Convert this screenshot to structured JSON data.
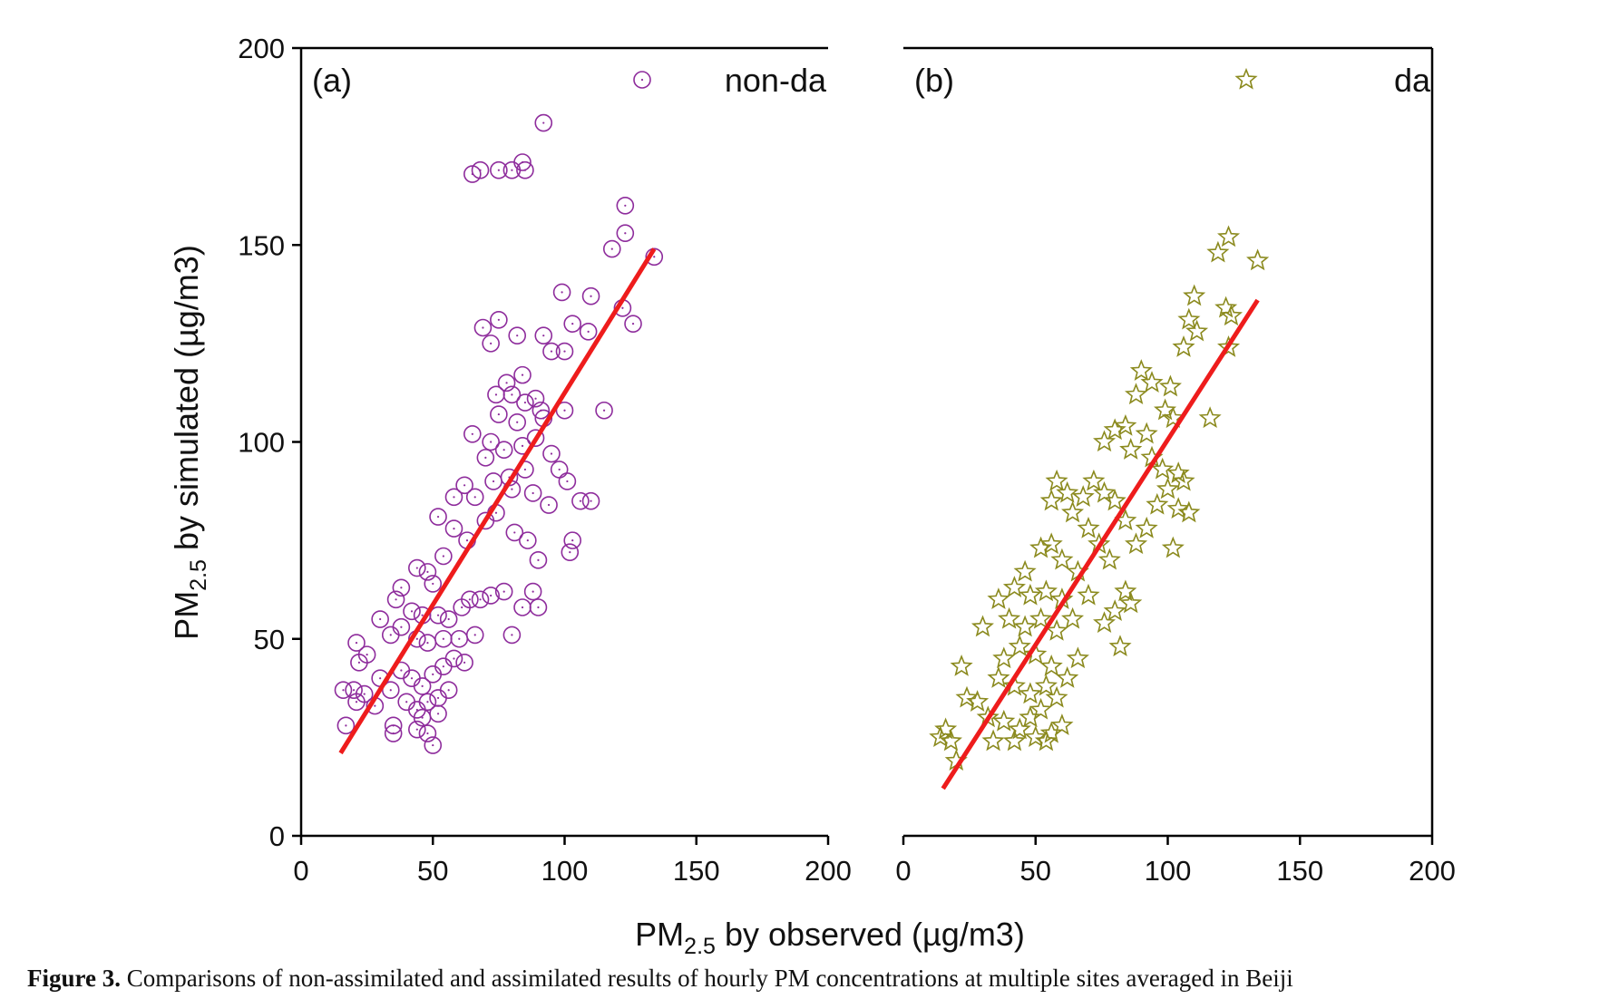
{
  "chart_data": [
    {
      "type": "scatter",
      "panel_label": "(a)",
      "xlim": [
        0,
        200
      ],
      "ylim": [
        0,
        200
      ],
      "xticks": [
        0,
        50,
        100,
        150,
        200
      ],
      "yticks": [
        0,
        50,
        100,
        150,
        200
      ],
      "legend": "upper right",
      "left_axis": true,
      "right_axis": false,
      "series": [
        {
          "name": "non-da",
          "color": "#8e2c9c",
          "marker": "circle",
          "x": [
            92,
            65,
            68,
            75,
            80,
            84,
            85,
            123,
            123,
            118,
            134,
            122,
            126,
            110,
            99,
            109,
            103,
            95,
            100,
            92,
            75,
            69,
            82,
            72,
            84,
            78,
            80,
            74,
            85,
            89,
            75,
            82,
            91,
            100,
            115,
            92,
            65,
            72,
            77,
            84,
            89,
            95,
            98,
            85,
            79,
            70,
            62,
            58,
            66,
            73,
            80,
            88,
            94,
            101,
            106,
            110,
            103,
            102,
            90,
            86,
            81,
            74,
            70,
            52,
            58,
            63,
            54,
            48,
            44,
            50,
            38,
            36,
            42,
            46,
            52,
            56,
            61,
            64,
            68,
            72,
            77,
            80,
            88,
            90,
            84,
            30,
            34,
            38,
            44,
            48,
            54,
            60,
            66,
            21,
            22,
            25,
            30,
            34,
            38,
            42,
            46,
            50,
            54,
            58,
            62,
            16,
            20,
            24,
            28,
            21,
            40,
            44,
            48,
            52,
            56,
            17,
            35,
            35,
            44,
            48,
            50,
            46,
            52
          ],
          "y": [
            181,
            168,
            169,
            169,
            169,
            171,
            169,
            160,
            153,
            149,
            147,
            134,
            130,
            137,
            138,
            128,
            130,
            123,
            123,
            127,
            131,
            129,
            127,
            125,
            117,
            115,
            112,
            112,
            110,
            111,
            107,
            105,
            108,
            108,
            108,
            106,
            102,
            100,
            98,
            99,
            101,
            97,
            93,
            93,
            91,
            96,
            89,
            86,
            86,
            90,
            88,
            87,
            84,
            90,
            85,
            85,
            75,
            72,
            70,
            75,
            77,
            82,
            80,
            81,
            78,
            75,
            71,
            67,
            68,
            64,
            63,
            60,
            57,
            56,
            56,
            55,
            58,
            60,
            60,
            61,
            62,
            51,
            62,
            58,
            58,
            55,
            51,
            53,
            50,
            49,
            50,
            50,
            51,
            49,
            44,
            46,
            40,
            37,
            42,
            40,
            38,
            41,
            43,
            45,
            44,
            37,
            37,
            36,
            33,
            34,
            34,
            32,
            34,
            35,
            37,
            28,
            28,
            26,
            27,
            26,
            23,
            30,
            31
          ]
        }
      ],
      "fit_line": {
        "color": "#ee1c1c",
        "x": [
          15,
          134
        ],
        "y": [
          21,
          149
        ]
      }
    },
    {
      "type": "scatter",
      "panel_label": "(b)",
      "xlim": [
        0,
        200
      ],
      "ylim": [
        0,
        200
      ],
      "xticks": [
        0,
        50,
        100,
        150,
        200
      ],
      "legend": "upper right",
      "left_axis": false,
      "right_axis": true,
      "series": [
        {
          "name": "da",
          "color": "#8b8a1e",
          "marker": "star",
          "x": [
            123,
            119,
            134,
            110,
            122,
            124,
            111,
            108,
            106,
            123,
            116,
            94,
            90,
            101,
            99,
            102,
            88,
            92,
            84,
            80,
            76,
            86,
            94,
            98,
            104,
            106,
            100,
            96,
            104,
            108,
            102,
            92,
            88,
            84,
            80,
            76,
            72,
            68,
            62,
            58,
            56,
            64,
            70,
            74,
            78,
            84,
            86,
            80,
            76,
            82,
            70,
            66,
            60,
            56,
            52,
            46,
            42,
            48,
            54,
            60,
            64,
            58,
            52,
            46,
            40,
            36,
            30,
            38,
            44,
            50,
            56,
            62,
            66,
            58,
            54,
            48,
            42,
            36,
            22,
            24,
            28,
            32,
            38,
            44,
            50,
            54,
            60,
            16,
            14,
            18,
            20,
            34,
            42,
            48,
            52,
            56
          ],
          "y": [
            152,
            148,
            146,
            137,
            134,
            132,
            128,
            131,
            124,
            124,
            106,
            115,
            118,
            114,
            108,
            106,
            112,
            102,
            104,
            103,
            100,
            98,
            96,
            93,
            92,
            90,
            88,
            84,
            83,
            82,
            73,
            78,
            74,
            80,
            85,
            87,
            90,
            86,
            87,
            90,
            85,
            82,
            78,
            74,
            70,
            62,
            59,
            57,
            54,
            48,
            61,
            67,
            70,
            74,
            73,
            67,
            63,
            61,
            62,
            60,
            55,
            52,
            55,
            53,
            55,
            60,
            53,
            45,
            48,
            46,
            43,
            40,
            45,
            35,
            38,
            36,
            38,
            40,
            43,
            35,
            34,
            30,
            29,
            27,
            25,
            24,
            28,
            27,
            25,
            24,
            19,
            24,
            24,
            30,
            32,
            26
          ]
        }
      ],
      "fit_line": {
        "color": "#ee1c1c",
        "x": [
          15,
          134
        ],
        "y": [
          12,
          136
        ]
      }
    }
  ],
  "figure": {
    "ylabel": {
      "main": "PM",
      "sub": "2.5",
      "rest": " by simulated (µg/m3)"
    },
    "xlabel": {
      "main": "PM",
      "sub": "2.5",
      "rest": " by observed (µg/m3)"
    },
    "caption": {
      "label": "Figure 3.",
      "text": " Comparisons of non-assimilated and assimilated results of hourly PM concentrations at multiple sites averaged in Beiji"
    }
  }
}
